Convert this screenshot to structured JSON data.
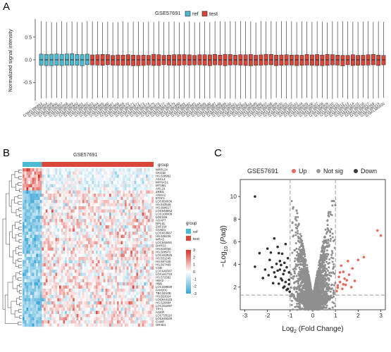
{
  "panelA": {
    "letter": "A",
    "legend_title": "GSE57691",
    "legend": [
      {
        "name": "ref",
        "color": "#4bbad3"
      },
      {
        "name": "test",
        "color": "#d9473b"
      }
    ],
    "chart_data": {
      "type": "box",
      "ylabel": "Normalized signal intensity",
      "ylim": [
        -0.9,
        0.9
      ],
      "yticks": [
        -0.5,
        0.0,
        0.5
      ],
      "ytick_labels": [
        "-0.5",
        "0.0",
        "0.5"
      ],
      "n_ref": 10,
      "n_test": 58,
      "samples": [
        "GSM1386853",
        "GSM1386854",
        "GSM1386855",
        "GSM1386856",
        "GSM1386857",
        "GSM1386858",
        "GSM1386859",
        "GSM1386860",
        "GSM1386861",
        "GSM1386862",
        "GSM1386863",
        "GSM1386864",
        "GSM1386865",
        "GSM1386866",
        "GSM1386867",
        "GSM1386868",
        "GSM1386869",
        "GSM1386870",
        "GSM1386871",
        "GSM1386872",
        "GSM1386873",
        "GSM1386874",
        "GSM1386875",
        "GSM1386876",
        "GSM1386877",
        "GSM1386878",
        "GSM1386879",
        "GSM1386880",
        "GSM1386881",
        "GSM1386882",
        "GSM1386883",
        "GSM1386884",
        "GSM1386885",
        "GSM1386886",
        "GSM1386887",
        "GSM1386888",
        "GSM1386889",
        "GSM1386890",
        "GSM1386891",
        "GSM1386892",
        "GSM1386893",
        "GSM1386894",
        "GSM1386895",
        "GSM1386896",
        "GSM1386897",
        "GSM1386898",
        "GSM1386899",
        "GSM1386900",
        "GSM1386901",
        "GSM1386902",
        "GSM1386903",
        "GSM1386904",
        "GSM1386905",
        "GSM1386906",
        "GSM1386907",
        "GSM1386908",
        "GSM1386909",
        "GSM1386910",
        "GSM1386911",
        "GSM1386912",
        "GSM1386913",
        "GSM1386914",
        "GSM1386915",
        "GSM1386916",
        "GSM1386917",
        "GSM1386918",
        "GSM1386919",
        "GSM1386920"
      ],
      "box": {
        "whisker_low": -0.85,
        "q1": -0.12,
        "median": 0.0,
        "q3": 0.11,
        "whisker_high": 0.84
      }
    }
  },
  "panelB": {
    "letter": "B",
    "title": "GSE57691",
    "group_label": "group",
    "legend_title": "group",
    "legend": [
      {
        "name": "ref",
        "color": "#4bbad3"
      },
      {
        "name": "test",
        "color": "#d9473b"
      }
    ],
    "scale_ticks": [
      "3",
      "2",
      "1",
      "0",
      "-1",
      "-2",
      "-3"
    ],
    "colors": {
      "high": "#d73027",
      "mid": "#ffffff",
      "low": "#3aa6d6"
    },
    "genes": [
      "MRPL24",
      "CKS1B",
      "HS.538962",
      "ASCL4",
      "MPHAS1",
      "MT1M1",
      "ARL16",
      "ZRBI1",
      "ANXA2",
      "BTAF1",
      "LOC650036",
      "HS.543548",
      "HS.568617",
      "LOC648662",
      "LOC100008",
      "LOC339",
      "AGAP7",
      "RPL11",
      "ZNF154",
      "CCNE1",
      "LOC653867",
      "HS.538226",
      "MRAS",
      "LOC646491",
      "DHRS3",
      "HS.510040",
      "HS.508972",
      "LOC442525",
      "HS.551245",
      "HS.587445",
      "HS.567469",
      "CSB",
      "LOC646387",
      "LOC441710",
      "HS.572582",
      "HBA2",
      "HBB",
      "LOC338829",
      "FAM20C",
      "TBC1D10B",
      "HS.553024",
      "LOC644133",
      "HS.526484",
      "LOC441097",
      "TRY1",
      "AGER",
      "LOC728110",
      "LOC645349",
      "CAMP",
      "OR4D1"
    ]
  },
  "panelC": {
    "letter": "C",
    "legend_title": "GSE57691",
    "legend": [
      {
        "name": "Up",
        "color": "#e9695a"
      },
      {
        "name": "Not sig",
        "color": "#9a9a9a"
      },
      {
        "name": "Down",
        "color": "#3b3b3b"
      }
    ],
    "chart_data": {
      "type": "scatter",
      "xlabel_main": "Log",
      "xlabel_sub": "2",
      "xlabel_tail": " (Fold Change)",
      "ylabel_pre": "−Log",
      "ylabel_sub": "10",
      "ylabel_it": "Padj",
      "xlim": [
        -3.2,
        3.2
      ],
      "ylim": [
        0,
        11.5
      ],
      "xticks": [
        -3,
        -2,
        -1,
        0,
        1,
        2,
        3
      ],
      "xtick_labels": [
        "-3",
        "-2",
        "-1",
        "0",
        "1",
        "2",
        "3"
      ],
      "yticks": [
        2,
        4,
        6,
        8,
        10
      ],
      "ytick_labels": [
        "2",
        "4",
        "6",
        "8",
        "10"
      ],
      "fc_cutoff": [
        -1,
        1
      ],
      "padj_cutoff_y": 1.3,
      "up_points": [
        [
          2.85,
          7.0
        ],
        [
          3.0,
          6.55
        ],
        [
          2.25,
          4.65
        ],
        [
          2.0,
          4.4
        ],
        [
          1.75,
          3.65
        ],
        [
          1.55,
          4.3
        ],
        [
          1.6,
          3.1
        ],
        [
          1.4,
          2.75
        ],
        [
          1.35,
          3.35
        ],
        [
          1.2,
          2.45
        ],
        [
          1.15,
          2.9
        ],
        [
          1.45,
          2.2
        ],
        [
          1.85,
          2.55
        ],
        [
          1.25,
          3.9
        ],
        [
          1.1,
          2.15
        ],
        [
          1.3,
          1.85
        ],
        [
          1.05,
          1.65
        ],
        [
          1.5,
          2.6
        ],
        [
          1.7,
          2.0
        ],
        [
          1.2,
          3.3
        ],
        [
          1.1,
          1.95
        ],
        [
          1.35,
          2.25
        ]
      ],
      "down_points": [
        [
          -2.55,
          10.0
        ],
        [
          -2.0,
          5.4
        ],
        [
          -2.35,
          5.0
        ],
        [
          -1.85,
          5.05
        ],
        [
          -1.7,
          6.3
        ],
        [
          -1.55,
          5.55
        ],
        [
          -1.45,
          4.3
        ],
        [
          -1.35,
          4.95
        ],
        [
          -1.25,
          4.15
        ],
        [
          -1.55,
          3.45
        ],
        [
          -1.8,
          3.75
        ],
        [
          -2.1,
          3.55
        ],
        [
          -2.55,
          3.8
        ],
        [
          -1.4,
          2.75
        ],
        [
          -1.2,
          2.45
        ],
        [
          -1.65,
          2.9
        ],
        [
          -1.95,
          3.05
        ],
        [
          -1.15,
          3.75
        ],
        [
          -1.3,
          3.15
        ],
        [
          -1.05,
          2.25
        ],
        [
          -1.1,
          1.85
        ],
        [
          -1.5,
          2.3
        ],
        [
          -1.75,
          2.35
        ],
        [
          -1.3,
          1.95
        ],
        [
          -1.05,
          3.3
        ],
        [
          -1.2,
          5.8
        ],
        [
          -1.6,
          4.05
        ],
        [
          -1.1,
          4.55
        ],
        [
          -1.45,
          3.55
        ],
        [
          -1.25,
          2.05
        ],
        [
          -1.02,
          1.6
        ],
        [
          -1.35,
          2.6
        ],
        [
          -2.2,
          2.8
        ],
        [
          -1.9,
          4.4
        ],
        [
          -1.15,
          1.75
        ],
        [
          -1.05,
          2.65
        ],
        [
          -1.4,
          3.95
        ],
        [
          -1.25,
          3.45
        ],
        [
          -1.7,
          3.3
        ],
        [
          -1.5,
          5.0
        ]
      ]
    }
  }
}
